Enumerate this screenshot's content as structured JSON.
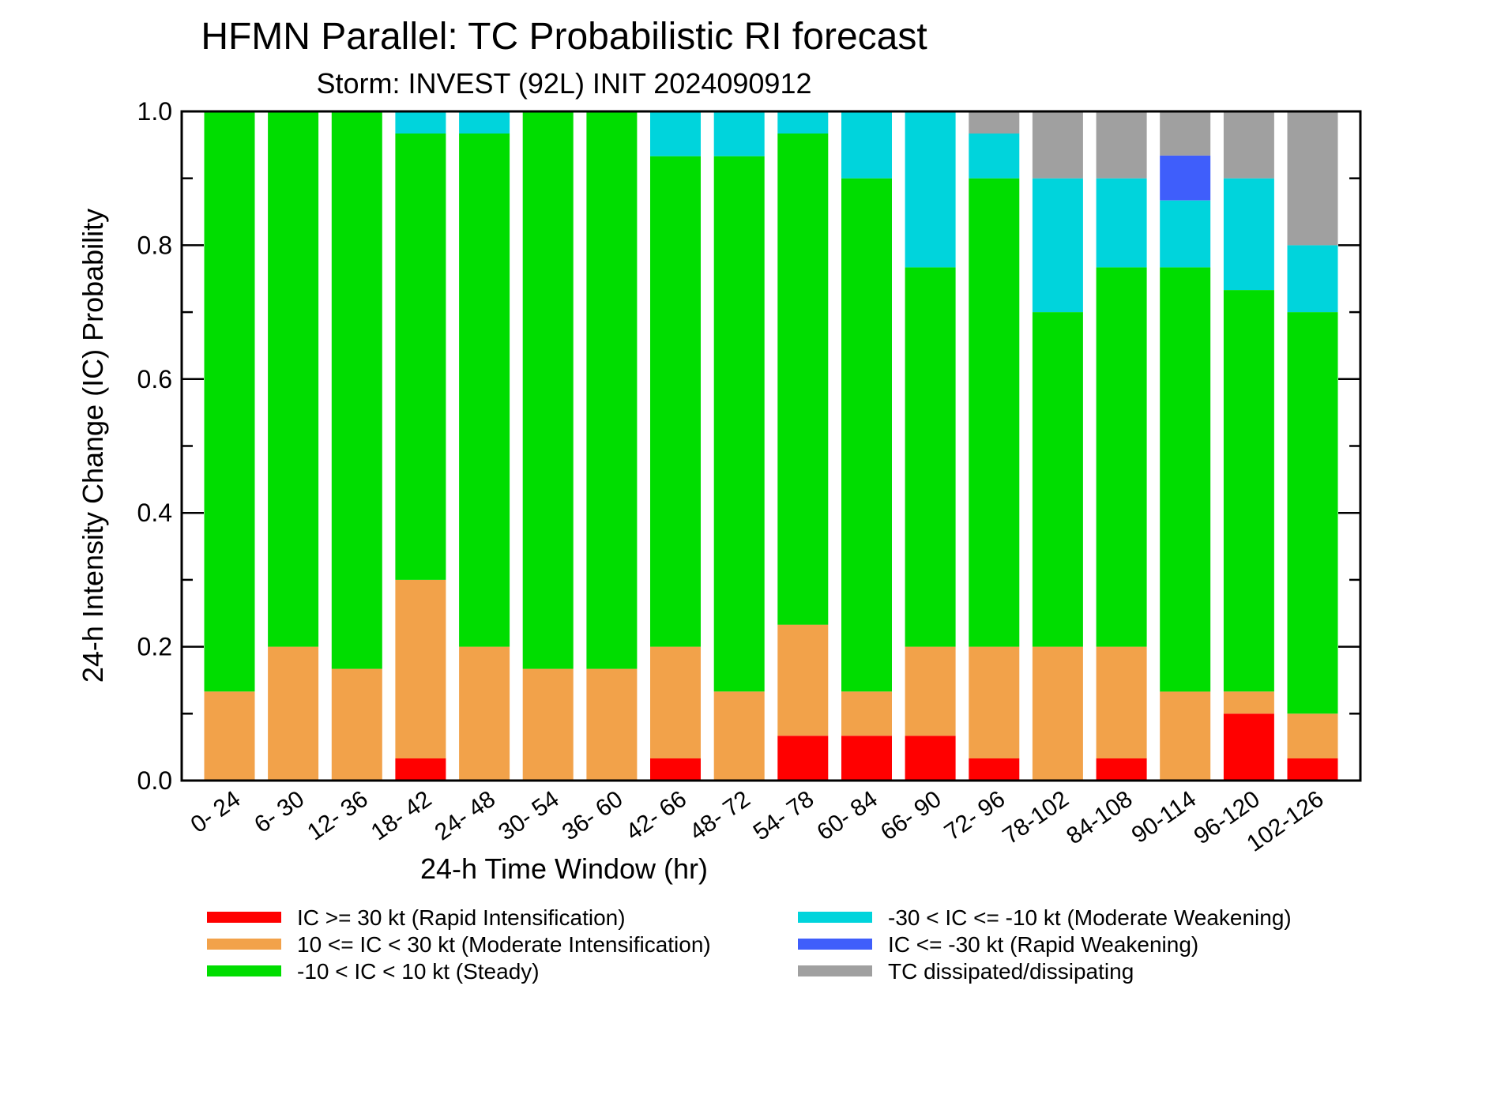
{
  "chart_data": {
    "type": "bar",
    "stacked": true,
    "title": "HFMN Parallel: TC Probabilistic RI forecast",
    "subtitle": "Storm: INVEST (92L) INIT 2024090912",
    "xlabel": "24-h Time Window (hr)",
    "ylabel": "24-h Intensity Change (IC) Probability",
    "ylim": [
      0,
      1
    ],
    "yticks": [
      "0.0",
      "0.2",
      "0.4",
      "0.6",
      "0.8",
      "1.0"
    ],
    "grid": false,
    "legend_position": "bottom",
    "categories": [
      "0- 24",
      "6- 30",
      "12- 36",
      "18- 42",
      "24- 48",
      "30- 54",
      "36- 60",
      "42- 66",
      "48- 72",
      "54- 78",
      "60- 84",
      "66- 90",
      "72- 96",
      "78-102",
      "84-108",
      "90-114",
      "96-120",
      "102-126"
    ],
    "series": [
      {
        "name": "IC >= 30 kt (Rapid Intensification)",
        "color": "#ff0000",
        "values": [
          0,
          0,
          0,
          0.033,
          0,
          0,
          0,
          0.033,
          0,
          0.067,
          0.067,
          0.067,
          0.033,
          0,
          0.033,
          0,
          0.1,
          0.033
        ]
      },
      {
        "name": "10 <= IC < 30 kt (Moderate Intensification)",
        "color": "#f2a24a",
        "values": [
          0.133,
          0.2,
          0.167,
          0.267,
          0.2,
          0.167,
          0.167,
          0.167,
          0.133,
          0.166,
          0.066,
          0.133,
          0.167,
          0.2,
          0.167,
          0.133,
          0.033,
          0.067
        ]
      },
      {
        "name": "-10 < IC < 10 kt (Steady)",
        "color": "#00dd00",
        "values": [
          0.867,
          0.8,
          0.833,
          0.667,
          0.767,
          0.833,
          0.833,
          0.733,
          0.8,
          0.734,
          0.767,
          0.567,
          0.7,
          0.5,
          0.567,
          0.634,
          0.6,
          0.6
        ]
      },
      {
        "name": "-30 < IC <= -10 kt (Moderate Weakening)",
        "color": "#00d4dc",
        "values": [
          0,
          0,
          0,
          0.033,
          0.033,
          0,
          0,
          0.067,
          0.067,
          0.033,
          0.1,
          0.233,
          0.067,
          0.2,
          0.133,
          0.1,
          0.167,
          0.1
        ]
      },
      {
        "name": "IC <= -30 kt (Rapid Weakening)",
        "color": "#3f5efb",
        "values": [
          0,
          0,
          0,
          0,
          0,
          0,
          0,
          0,
          0,
          0,
          0,
          0,
          0,
          0,
          0,
          0.067,
          0,
          0
        ]
      },
      {
        "name": "TC dissipated/dissipating",
        "color": "#a0a0a0",
        "values": [
          0,
          0,
          0,
          0,
          0,
          0,
          0,
          0,
          0,
          0,
          0,
          0,
          0.033,
          0.1,
          0.1,
          0.066,
          0.1,
          0.2
        ]
      }
    ],
    "legend_order": [
      0,
      3,
      1,
      4,
      2,
      5
    ]
  }
}
